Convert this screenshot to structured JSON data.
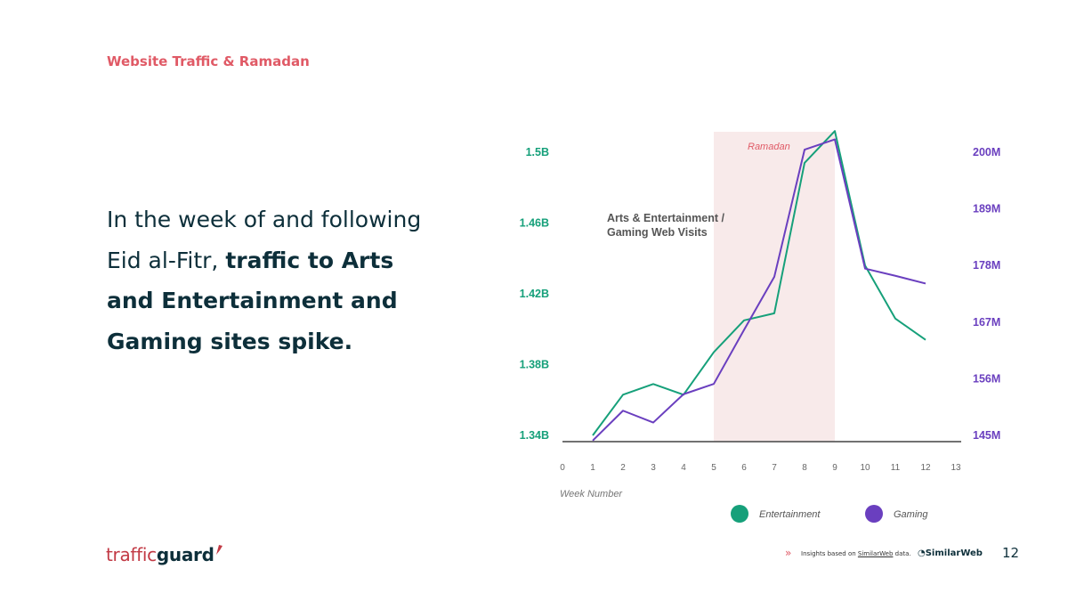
{
  "header": {
    "section_title": "Website Traffic & Ramadan"
  },
  "headline": {
    "part1": "In the week of and following Eid al-Fitr, ",
    "part2_bold": "traffic to Arts and Entertainment and Gaming sites spike."
  },
  "chart_data": {
    "type": "line",
    "title": "Arts & Entertainment / Gaming Web Visits",
    "xlabel": "Week Number",
    "x": [
      1,
      2,
      3,
      4,
      5,
      6,
      7,
      8,
      9,
      10,
      11,
      12
    ],
    "x_ticks": [
      "0",
      "1",
      "2",
      "3",
      "4",
      "5",
      "6",
      "7",
      "8",
      "9",
      "10",
      "11",
      "12",
      "13"
    ],
    "xlim": [
      0,
      13
    ],
    "left_axis": {
      "ticks": [
        "1.34B",
        "1.38B",
        "1.42B",
        "1.46B",
        "1.5B"
      ],
      "ylim": [
        1.34,
        1.5
      ],
      "color": "#16a07a"
    },
    "right_axis": {
      "ticks": [
        "145M",
        "156M",
        "167M",
        "178M",
        "189M",
        "200M"
      ],
      "ylim": [
        145,
        200
      ],
      "color": "#6a3fbf"
    },
    "series": [
      {
        "name": "Entertainment",
        "axis": "left",
        "color": "#16a07a",
        "values": [
          1.34,
          1.363,
          1.369,
          1.363,
          1.387,
          1.405,
          1.409,
          1.494,
          1.512,
          1.436,
          1.406,
          1.394
        ]
      },
      {
        "name": "Gaming",
        "axis": "right",
        "color": "#6a3fbf",
        "values": [
          144.0,
          149.8,
          147.5,
          153.0,
          155.0,
          165.5,
          175.8,
          200.5,
          202.5,
          177.4,
          176.0,
          174.5
        ]
      }
    ],
    "shaded_region": {
      "label": "Ramadan",
      "x_start": 5,
      "x_end": 9,
      "color": "#f7e6e6"
    },
    "legend": [
      "Entertainment",
      "Gaming"
    ],
    "legend_position": "bottom"
  },
  "footer": {
    "logo_part1": "traffic",
    "logo_part2": "guard",
    "note_prefix": "Insights based on ",
    "note_link": "SimilarWeb",
    "note_suffix": " data.",
    "similarweb_logo": "SimilarWeb",
    "page_number": "12"
  },
  "colors": {
    "accent": "#e05a66",
    "dark": "#0d2f3a",
    "entertainment": "#16a07a",
    "gaming": "#6a3fbf"
  }
}
